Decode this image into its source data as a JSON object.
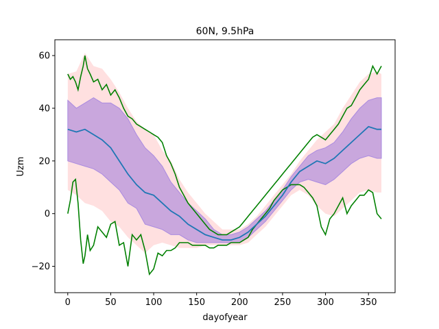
{
  "chart_data": {
    "type": "line",
    "title": "60N, 9.5hPa",
    "xlabel": "dayofyear",
    "ylabel": "Uzm",
    "xlim": [
      -15,
      381
    ],
    "ylim": [
      -30,
      66
    ],
    "xticks": [
      0,
      50,
      100,
      150,
      200,
      250,
      300,
      350
    ],
    "yticks": [
      -20,
      0,
      20,
      40,
      60
    ],
    "grid": false,
    "legend": "none",
    "colors": {
      "mean": "#1f77b4",
      "extremes": "#008000",
      "outer_band": "#ffd8d8",
      "inner_band": "#b28fdc",
      "inner_band_edge": "#a98ae0"
    },
    "series": [
      {
        "role": "mean",
        "x": [
          0,
          10,
          20,
          30,
          40,
          50,
          60,
          70,
          80,
          90,
          100,
          110,
          120,
          130,
          140,
          150,
          160,
          170,
          180,
          190,
          200,
          210,
          220,
          230,
          240,
          250,
          260,
          270,
          280,
          290,
          300,
          310,
          320,
          330,
          340,
          350,
          360,
          365
        ],
        "y": [
          32,
          31,
          32,
          30,
          28,
          25,
          20,
          15,
          11,
          8,
          7,
          4,
          1,
          -1,
          -4,
          -6,
          -8,
          -9,
          -10,
          -10,
          -9,
          -7,
          -4,
          -1,
          3,
          7,
          12,
          16,
          18,
          20,
          19,
          21,
          24,
          27,
          30,
          33,
          32,
          32
        ]
      },
      {
        "role": "inner_band",
        "x": [
          0,
          10,
          20,
          30,
          40,
          50,
          60,
          70,
          80,
          90,
          100,
          110,
          120,
          130,
          140,
          150,
          160,
          170,
          180,
          190,
          200,
          210,
          220,
          230,
          240,
          250,
          260,
          270,
          280,
          290,
          300,
          310,
          320,
          330,
          340,
          350,
          360,
          365
        ],
        "upper": [
          43,
          40,
          42,
          44,
          42,
          42,
          40,
          36,
          30,
          25,
          22,
          18,
          12,
          8,
          4,
          1,
          -2,
          -6,
          -8,
          -8,
          -7,
          -5,
          -2,
          1,
          5,
          9,
          14,
          18,
          22,
          24,
          25,
          27,
          31,
          36,
          40,
          43,
          44,
          44
        ],
        "lower": [
          20,
          19,
          18,
          17,
          15,
          12,
          9,
          4,
          2,
          -4,
          -5,
          -6,
          -8,
          -8,
          -10,
          -11,
          -11,
          -11,
          -11,
          -11,
          -11,
          -9,
          -6,
          -3,
          1,
          5,
          9,
          12,
          13,
          12,
          11,
          13,
          16,
          19,
          21,
          22,
          21,
          21
        ]
      },
      {
        "role": "outer_band",
        "x": [
          0,
          10,
          20,
          30,
          40,
          50,
          60,
          70,
          80,
          90,
          100,
          110,
          120,
          130,
          140,
          150,
          160,
          170,
          180,
          190,
          200,
          210,
          220,
          230,
          240,
          250,
          260,
          270,
          280,
          290,
          300,
          310,
          320,
          330,
          340,
          350,
          360,
          365
        ],
        "upper": [
          53,
          54,
          61,
          56,
          55,
          51,
          46,
          40,
          35,
          32,
          30,
          24,
          20,
          13,
          8,
          4,
          0,
          -3,
          -6,
          -6,
          -6,
          -4,
          -1,
          3,
          7,
          11,
          15,
          20,
          24,
          28,
          31,
          34,
          40,
          45,
          50,
          53,
          54,
          53
        ],
        "lower": [
          9,
          7,
          4,
          3,
          1,
          -3,
          -5,
          -9,
          -12,
          -15,
          -12,
          -11,
          -12,
          -13,
          -13,
          -13,
          -12,
          -12,
          -12,
          -12,
          -12,
          -11,
          -8,
          -5,
          -1,
          3,
          7,
          9,
          7,
          3,
          0,
          -1,
          2,
          5,
          8,
          9,
          8,
          8
        ]
      },
      {
        "role": "maximum",
        "x": [
          0,
          3,
          6,
          9,
          12,
          15,
          18,
          20,
          23,
          26,
          30,
          35,
          40,
          45,
          50,
          55,
          60,
          65,
          70,
          75,
          80,
          85,
          90,
          95,
          100,
          105,
          110,
          115,
          120,
          125,
          130,
          135,
          140,
          145,
          150,
          155,
          160,
          165,
          170,
          175,
          180,
          185,
          190,
          195,
          200,
          205,
          210,
          215,
          220,
          225,
          230,
          235,
          240,
          245,
          250,
          255,
          260,
          265,
          270,
          275,
          280,
          285,
          290,
          295,
          300,
          305,
          310,
          315,
          320,
          325,
          330,
          335,
          340,
          345,
          350,
          355,
          360,
          365
        ],
        "y": [
          53,
          51,
          52,
          50,
          47,
          52,
          56,
          60,
          55,
          53,
          50,
          51,
          47,
          49,
          45,
          47,
          44,
          40,
          37,
          36,
          34,
          33,
          32,
          31,
          30,
          29,
          27,
          22,
          19,
          15,
          10,
          7,
          4,
          2,
          0,
          -2,
          -4,
          -6,
          -7,
          -8,
          -8,
          -8,
          -7,
          -6,
          -5,
          -3,
          -1,
          1,
          3,
          5,
          7,
          9,
          11,
          13,
          15,
          17,
          19,
          21,
          23,
          25,
          27,
          29,
          30,
          29,
          28,
          30,
          32,
          34,
          37,
          40,
          41,
          44,
          47,
          49,
          51,
          56,
          53,
          56
        ]
      },
      {
        "role": "minimum",
        "x": [
          0,
          3,
          6,
          9,
          12,
          15,
          18,
          20,
          23,
          26,
          30,
          35,
          40,
          45,
          50,
          55,
          60,
          65,
          70,
          75,
          80,
          85,
          90,
          95,
          100,
          105,
          110,
          115,
          120,
          125,
          130,
          135,
          140,
          145,
          150,
          155,
          160,
          165,
          170,
          175,
          180,
          185,
          190,
          195,
          200,
          205,
          210,
          215,
          220,
          225,
          230,
          235,
          240,
          245,
          250,
          255,
          260,
          265,
          270,
          275,
          280,
          285,
          290,
          295,
          300,
          305,
          310,
          315,
          320,
          325,
          330,
          335,
          340,
          345,
          350,
          355,
          360,
          365
        ],
        "y": [
          0,
          5,
          12,
          13,
          4,
          -10,
          -19,
          -16,
          -8,
          -14,
          -12,
          -5,
          -7,
          -9,
          -4,
          -3,
          -12,
          -11,
          -20,
          -8,
          -10,
          -8,
          -14,
          -23,
          -21,
          -15,
          -16,
          -14,
          -14,
          -13,
          -11,
          -11,
          -11,
          -12,
          -12,
          -12,
          -12,
          -13,
          -13,
          -12,
          -12,
          -12,
          -11,
          -11,
          -11,
          -10,
          -9,
          -6,
          -4,
          -2,
          0,
          2,
          5,
          7,
          9,
          10,
          11,
          11,
          11,
          10,
          8,
          6,
          3,
          -5,
          -8,
          -2,
          0,
          3,
          6,
          0,
          3,
          5,
          7,
          7,
          9,
          8,
          0,
          -2
        ]
      }
    ]
  }
}
